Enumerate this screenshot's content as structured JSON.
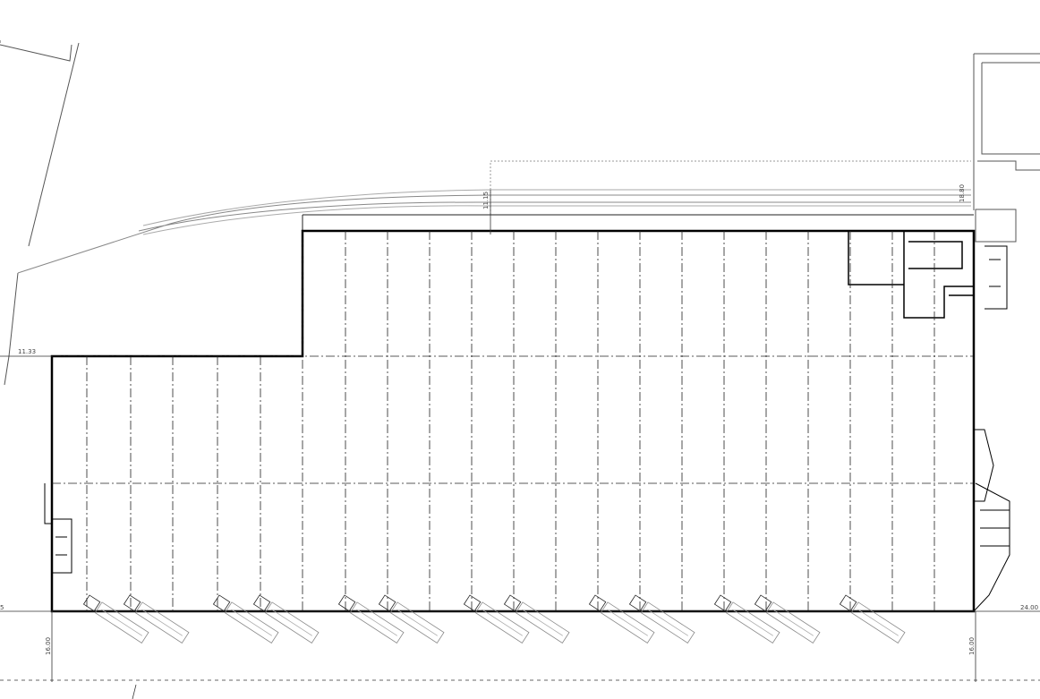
{
  "drawing": {
    "dimensions": {
      "left_offset": "11.33",
      "top_offset": "11.15",
      "right_top_offset": "18.80",
      "bottom_left_depth": "16.00",
      "bottom_right_depth": "16.00",
      "bottom_right_span": "24.00",
      "bottom_left_cut": "5"
    },
    "line_color": "#000000",
    "rail_color": "#888888",
    "truck_docks": 13
  }
}
